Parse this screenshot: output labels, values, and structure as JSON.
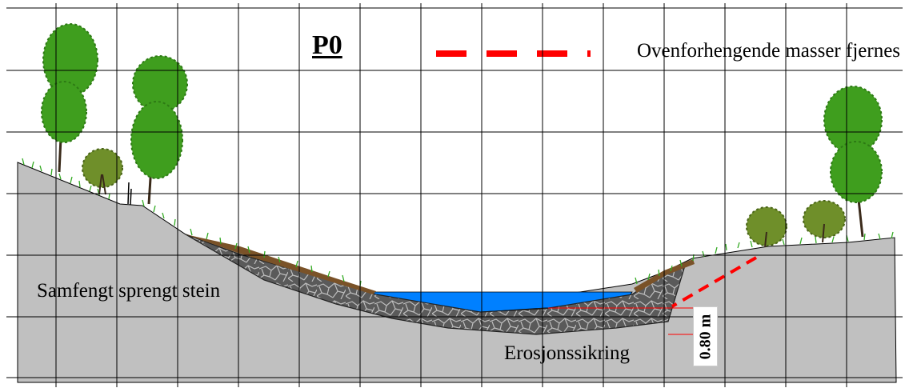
{
  "title": "P0",
  "legend": {
    "line_style": "dashed",
    "line_color": "#ff0000",
    "text": "Ovenforhengende masser fjernes"
  },
  "labels": {
    "rock_fill": "Samfengt sprengt stein",
    "erosion_protection": "Erosjonssikring",
    "depth": "0.80 m"
  },
  "colors": {
    "terrain": "#c0c0c0",
    "water": "#0080ff",
    "rock": "#5a5a5a",
    "grid": "#000000",
    "grass": "#33aa22",
    "soil": "#7a5228",
    "tree_foliage": "#3f9e1e",
    "shrub_foliage": "#6f8f2a"
  }
}
